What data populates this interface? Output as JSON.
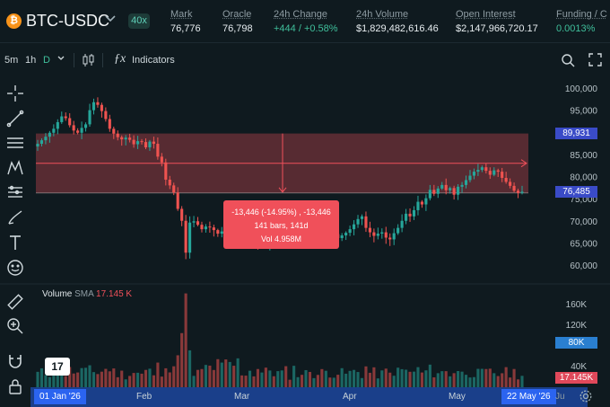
{
  "header": {
    "coin_icon": "bitcoin-icon",
    "coin_symbol": "₿",
    "pair": "BTC-USDC",
    "leverage": "40x",
    "stats": [
      {
        "label": "Mark",
        "value": "76,776"
      },
      {
        "label": "Oracle",
        "value": "76,798"
      },
      {
        "label": "24h Change",
        "value": "+444 / +0.58%"
      },
      {
        "label": "24h Volume",
        "value": "$1,829,482,616.46"
      },
      {
        "label": "Open Interest",
        "value": "$2,147,966,720.17"
      },
      {
        "label": "Funding / C",
        "value": "0.0013%"
      }
    ]
  },
  "toolbar": {
    "intervals": [
      "5m",
      "1h",
      "D"
    ],
    "active_interval": "D",
    "indicators_label": "Indicators"
  },
  "tooltip": {
    "line1": "-13,446 (-14.95%) , -13,446",
    "line2": "141 bars, 141d",
    "line3": "Vol 4.958M"
  },
  "volume": {
    "label": "Volume",
    "sma_label": "SMA",
    "sma_value": "17.145 K"
  },
  "price_tags": {
    "upper": "89,931",
    "lower": "76,485"
  },
  "volume_tags": {
    "level": "80K",
    "sma": "17.145K"
  },
  "time": {
    "start": "01 Jan '26",
    "end": "22 May '26",
    "next": "Ju",
    "months": [
      "Feb",
      "Mar",
      "Apr",
      "May"
    ]
  },
  "colors": {
    "up": "#26a69a",
    "down": "#ef5350",
    "accent": "#2b64f0",
    "range_fill": "#f0505a"
  },
  "chart_data": {
    "type": "candlestick",
    "x_start": "2026-01-01",
    "x_end": "2026-05-22",
    "y_ticks": [
      60000,
      65000,
      70000,
      75000,
      80000,
      85000,
      90000,
      95000,
      100000
    ],
    "ylim": [
      57000,
      102000
    ],
    "volume_ticks": [
      "40K",
      "80K",
      "120K",
      "160K"
    ],
    "volume_ylim": [
      0,
      190000
    ],
    "closes": [
      87600,
      88400,
      89200,
      90100,
      91000,
      92500,
      93800,
      93400,
      91800,
      90600,
      90100,
      91200,
      92000,
      95200,
      97000,
      96400,
      95000,
      93200,
      91000,
      89900,
      89100,
      88600,
      89000,
      88500,
      87500,
      88200,
      88000,
      86800,
      88100,
      87600,
      84700,
      83400,
      79500,
      78200,
      76600,
      72900,
      70200,
      63000,
      69800,
      70100,
      69300,
      68300,
      68900,
      68700,
      68100,
      67300,
      67800,
      66800,
      67900,
      67000,
      68500,
      67700,
      66700,
      68200,
      67500,
      65000,
      65900,
      64800,
      66700,
      65800,
      66500,
      67300,
      65900,
      65600,
      67900,
      68500,
      67800,
      68300,
      66600,
      67300,
      67000,
      66200,
      67400,
      66400,
      67200,
      66300,
      66900,
      67500,
      68300,
      69400,
      70600,
      71200,
      68600,
      67600,
      66800,
      67300,
      67600,
      66400,
      66000,
      67400,
      68600,
      70200,
      71800,
      71200,
      72600,
      74500,
      73900,
      75300,
      77200,
      76300,
      77500,
      78300,
      77100,
      77600,
      76100,
      77900,
      78300,
      79400,
      80400,
      81300,
      81700,
      82300,
      81500,
      80600,
      81600,
      81300,
      79900,
      79000,
      78100,
      77000,
      76500,
      76776
    ],
    "range": {
      "from_date": "2026-01-01",
      "to_date": "2026-05-21",
      "high": 89931,
      "low": 76485,
      "change": -13446,
      "change_pct": -14.95,
      "bars": 141
    }
  }
}
